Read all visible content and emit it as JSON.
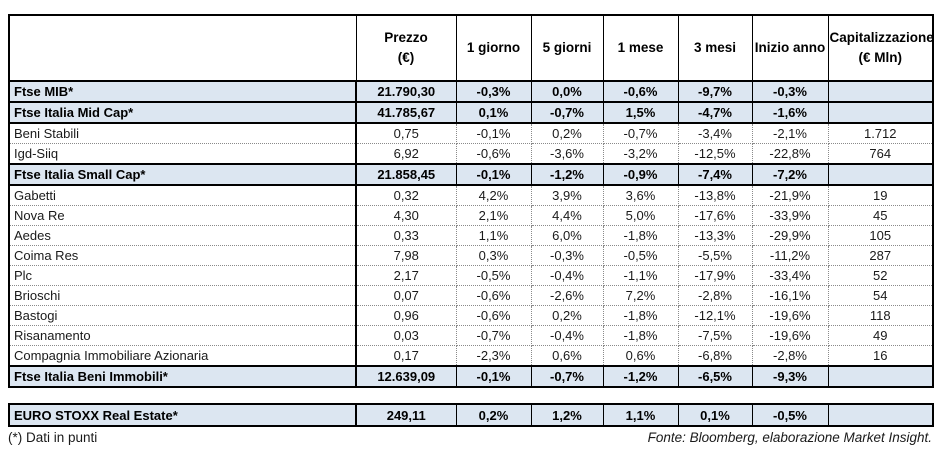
{
  "colors": {
    "index_row_bg": "#dce6f1",
    "border": "#000000",
    "dotted_border": "#8a8a8a"
  },
  "chart_data": {
    "type": "table",
    "header": {
      "name": "",
      "prezzo_line1": "Prezzo",
      "prezzo_line2": "(€)",
      "periods": [
        "1 giorno",
        "5 giorni",
        "1 mese",
        "3 mesi",
        "Inizio anno"
      ],
      "cap_line1": "Capitalizzazione",
      "cap_line2": "(€ Mln)"
    },
    "rows": [
      {
        "type": "index",
        "name": "Ftse MIB*",
        "prezzo": "21.790,30",
        "p1": "-0,3%",
        "p5": "0,0%",
        "m1": "-0,6%",
        "m3": "-9,7%",
        "ytd": "-0,3%",
        "cap": ""
      },
      {
        "type": "index",
        "name": "Ftse Italia Mid Cap*",
        "prezzo": "41.785,67",
        "p1": "0,1%",
        "p5": "-0,7%",
        "m1": "1,5%",
        "m3": "-4,7%",
        "ytd": "-1,6%",
        "cap": ""
      },
      {
        "type": "stock",
        "name": "Beni Stabili",
        "prezzo": "0,75",
        "p1": "-0,1%",
        "p5": "0,2%",
        "m1": "-0,7%",
        "m3": "-3,4%",
        "ytd": "-2,1%",
        "cap": "1.712"
      },
      {
        "type": "stock",
        "name": "Igd-Siiq",
        "prezzo": "6,92",
        "p1": "-0,6%",
        "p5": "-3,6%",
        "m1": "-3,2%",
        "m3": "-12,5%",
        "ytd": "-22,8%",
        "cap": "764"
      },
      {
        "type": "index",
        "name": "Ftse Italia Small Cap*",
        "prezzo": "21.858,45",
        "p1": "-0,1%",
        "p5": "-1,2%",
        "m1": "-0,9%",
        "m3": "-7,4%",
        "ytd": "-7,2%",
        "cap": ""
      },
      {
        "type": "stock",
        "name": "Gabetti",
        "prezzo": "0,32",
        "p1": "4,2%",
        "p5": "3,9%",
        "m1": "3,6%",
        "m3": "-13,8%",
        "ytd": "-21,9%",
        "cap": "19"
      },
      {
        "type": "stock",
        "name": "Nova Re",
        "prezzo": "4,30",
        "p1": "2,1%",
        "p5": "4,4%",
        "m1": "5,0%",
        "m3": "-17,6%",
        "ytd": "-33,9%",
        "cap": "45"
      },
      {
        "type": "stock",
        "name": "Aedes",
        "prezzo": "0,33",
        "p1": "1,1%",
        "p5": "6,0%",
        "m1": "-1,8%",
        "m3": "-13,3%",
        "ytd": "-29,9%",
        "cap": "105"
      },
      {
        "type": "stock",
        "name": "Coima Res",
        "prezzo": "7,98",
        "p1": "0,3%",
        "p5": "-0,3%",
        "m1": "-0,5%",
        "m3": "-5,5%",
        "ytd": "-11,2%",
        "cap": "287"
      },
      {
        "type": "stock",
        "name": "Plc",
        "prezzo": "2,17",
        "p1": "-0,5%",
        "p5": "-0,4%",
        "m1": "-1,1%",
        "m3": "-17,9%",
        "ytd": "-33,4%",
        "cap": "52"
      },
      {
        "type": "stock",
        "name": "Brioschi",
        "prezzo": "0,07",
        "p1": "-0,6%",
        "p5": "-2,6%",
        "m1": "7,2%",
        "m3": "-2,8%",
        "ytd": "-16,1%",
        "cap": "54"
      },
      {
        "type": "stock",
        "name": "Bastogi",
        "prezzo": "0,96",
        "p1": "-0,6%",
        "p5": "0,2%",
        "m1": "-1,8%",
        "m3": "-12,1%",
        "ytd": "-19,6%",
        "cap": "118"
      },
      {
        "type": "stock",
        "name": "Risanamento",
        "prezzo": "0,03",
        "p1": "-0,7%",
        "p5": "-0,4%",
        "m1": "-1,8%",
        "m3": "-7,5%",
        "ytd": "-19,6%",
        "cap": "49"
      },
      {
        "type": "stock",
        "name": "Compagnia Immobiliare Azionaria",
        "prezzo": "0,17",
        "p1": "-2,3%",
        "p5": "0,6%",
        "m1": "0,6%",
        "m3": "-6,8%",
        "ytd": "-2,8%",
        "cap": "16"
      },
      {
        "type": "index",
        "name": "Ftse Italia Beni Immobili*",
        "prezzo": "12.639,09",
        "p1": "-0,1%",
        "p5": "-0,7%",
        "m1": "-1,2%",
        "m3": "-6,5%",
        "ytd": "-9,3%",
        "cap": ""
      }
    ],
    "euro_row": {
      "type": "index",
      "name": "EURO STOXX Real Estate*",
      "prezzo": "249,11",
      "p1": "0,2%",
      "p5": "1,2%",
      "m1": "1,1%",
      "m3": "0,1%",
      "ytd": "-0,5%",
      "cap": ""
    }
  },
  "footer": {
    "note": "(*) Dati in punti",
    "source": "Fonte: Bloomberg, elaborazione Market Insight."
  }
}
